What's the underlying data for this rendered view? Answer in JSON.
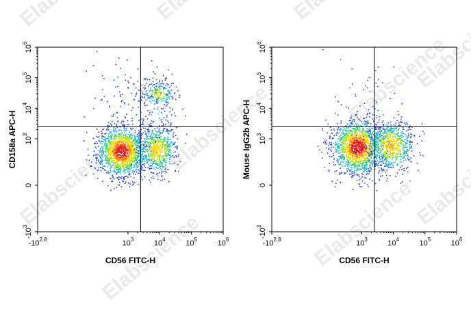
{
  "watermark": {
    "text": "Elabscience",
    "registered_mark": "®"
  },
  "chart_data": [
    {
      "type": "scatter",
      "style": "flow-cytometry pseudocolor density dot plot",
      "xlabel": "CD56 FITC-H",
      "ylabel": "CD158a APC-H",
      "x_scale": "biexponential",
      "y_scale": "biexponential",
      "x_ticks": [
        {
          "base": "-10",
          "exp": "2.8",
          "value": -631
        },
        {
          "base": "10",
          "exp": "3",
          "value": 1000
        },
        {
          "base": "10",
          "exp": "4",
          "value": 10000
        },
        {
          "base": "10",
          "exp": "5",
          "value": 100000
        },
        {
          "base": "10",
          "exp": "6",
          "value": 1000000
        }
      ],
      "y_ticks": [
        {
          "base": "-10",
          "exp": "3",
          "value": -1000
        },
        {
          "base": "0",
          "exp": "",
          "value": 0
        },
        {
          "base": "10",
          "exp": "3",
          "value": 1000
        },
        {
          "base": "10",
          "exp": "4",
          "value": 10000
        },
        {
          "base": "10",
          "exp": "5",
          "value": 100000
        },
        {
          "base": "10",
          "exp": "6",
          "value": 1000000
        }
      ],
      "quadrant_gate": {
        "x": 2500,
        "y": 2500
      },
      "populations": [
        {
          "label": "CD56- CD158a-",
          "x_center": 600,
          "y_center": 400,
          "relative_size": "large"
        },
        {
          "label": "CD56+ CD158a-",
          "x_center": 8000,
          "y_center": 450,
          "relative_size": "medium"
        },
        {
          "label": "CD56+ CD158a+",
          "x_center": 9000,
          "y_center": 30000,
          "relative_size": "small"
        }
      ],
      "grid": false
    },
    {
      "type": "scatter",
      "style": "flow-cytometry pseudocolor density dot plot",
      "xlabel": "CD56 FITC-H",
      "ylabel": "Mouse IgG2b APC-H",
      "x_scale": "biexponential",
      "y_scale": "biexponential",
      "x_ticks": [
        {
          "base": "-10",
          "exp": "2.8",
          "value": -631
        },
        {
          "base": "10",
          "exp": "3",
          "value": 1000
        },
        {
          "base": "10",
          "exp": "4",
          "value": 10000
        },
        {
          "base": "10",
          "exp": "5",
          "value": 100000
        },
        {
          "base": "10",
          "exp": "6",
          "value": 1000000
        }
      ],
      "y_ticks": [
        {
          "base": "-10",
          "exp": "3",
          "value": -1000
        },
        {
          "base": "0",
          "exp": "",
          "value": 0
        },
        {
          "base": "10",
          "exp": "3",
          "value": 1000
        },
        {
          "base": "10",
          "exp": "4",
          "value": 10000
        },
        {
          "base": "10",
          "exp": "5",
          "value": 100000
        },
        {
          "base": "10",
          "exp": "6",
          "value": 1000000
        }
      ],
      "quadrant_gate": {
        "x": 2500,
        "y": 2500
      },
      "populations": [
        {
          "label": "CD56- IgG2b-",
          "x_center": 700,
          "y_center": 550,
          "relative_size": "large"
        },
        {
          "label": "CD56+ IgG2b-",
          "x_center": 8000,
          "y_center": 600,
          "relative_size": "medium"
        }
      ],
      "grid": false
    }
  ]
}
